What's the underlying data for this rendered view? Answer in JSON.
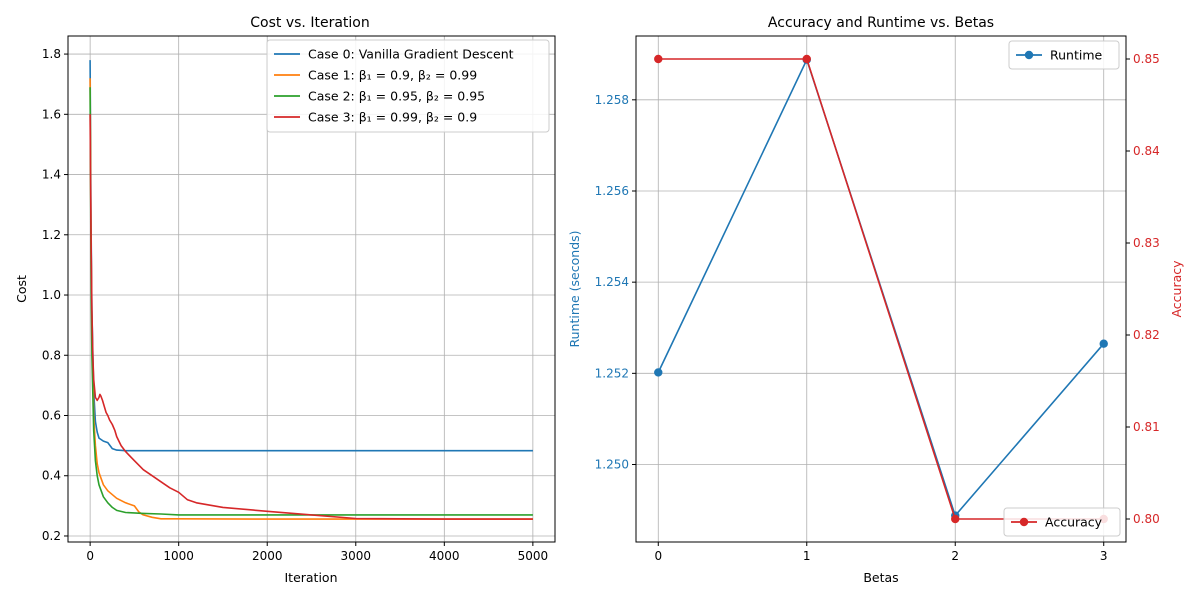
{
  "chart_data": [
    {
      "type": "line",
      "title": "Cost vs. Iteration",
      "xlabel": "Iteration",
      "ylabel": "Cost",
      "xlim": [
        -250,
        5250
      ],
      "ylim": [
        0.18,
        1.86
      ],
      "xticks": [
        0,
        1000,
        2000,
        3000,
        4000,
        5000
      ],
      "yticks": [
        0.2,
        0.4,
        0.6,
        0.8,
        1.0,
        1.2,
        1.4,
        1.6,
        1.8
      ],
      "grid": true,
      "legend": "top-right",
      "series": [
        {
          "name": "Case 0: Vanilla Gradient Descent",
          "color": "#1f77b4",
          "x": [
            0,
            10,
            20,
            40,
            60,
            80,
            100,
            150,
            200,
            250,
            300,
            400,
            600,
            1000,
            2000,
            3000,
            4000,
            5000
          ],
          "y": [
            1.78,
            1.25,
            0.95,
            0.68,
            0.58,
            0.545,
            0.525,
            0.515,
            0.51,
            0.49,
            0.485,
            0.483,
            0.483,
            0.483,
            0.483,
            0.483,
            0.483,
            0.483
          ]
        },
        {
          "name": "Case 1: β₁ = 0.9, β₂ = 0.99",
          "color": "#ff7f0e",
          "x": [
            0,
            10,
            20,
            40,
            60,
            80,
            100,
            150,
            200,
            300,
            400,
            500,
            550,
            600,
            700,
            800,
            1000,
            2000,
            3000,
            4000,
            5000
          ],
          "y": [
            1.72,
            1.2,
            0.9,
            0.6,
            0.5,
            0.44,
            0.41,
            0.37,
            0.35,
            0.325,
            0.31,
            0.3,
            0.28,
            0.27,
            0.262,
            0.257,
            0.257,
            0.256,
            0.256,
            0.256,
            0.256
          ]
        },
        {
          "name": "Case 2: β₁ = 0.95, β₂ = 0.95",
          "color": "#2ca02c",
          "x": [
            0,
            10,
            20,
            40,
            60,
            80,
            100,
            150,
            200,
            250,
            300,
            400,
            600,
            800,
            1000,
            2000,
            3000,
            4000,
            5000
          ],
          "y": [
            1.69,
            1.1,
            0.8,
            0.55,
            0.45,
            0.4,
            0.37,
            0.33,
            0.31,
            0.295,
            0.285,
            0.278,
            0.275,
            0.273,
            0.27,
            0.27,
            0.27,
            0.27,
            0.27
          ]
        },
        {
          "name": "Case 3: β₁ = 0.99, β₂ = 0.9",
          "color": "#d62728",
          "x": [
            0,
            10,
            20,
            30,
            40,
            60,
            80,
            100,
            110,
            120,
            140,
            160,
            180,
            200,
            220,
            250,
            280,
            300,
            350,
            400,
            500,
            600,
            700,
            800,
            900,
            1000,
            1100,
            1200,
            1500,
            2000,
            2500,
            3000,
            4000,
            5000
          ],
          "y": [
            1.6,
            1.2,
            0.95,
            0.8,
            0.72,
            0.66,
            0.65,
            0.66,
            0.67,
            0.665,
            0.65,
            0.63,
            0.61,
            0.6,
            0.585,
            0.57,
            0.55,
            0.53,
            0.5,
            0.48,
            0.45,
            0.42,
            0.4,
            0.38,
            0.36,
            0.345,
            0.32,
            0.31,
            0.295,
            0.282,
            0.27,
            0.258,
            0.256,
            0.256
          ]
        }
      ]
    },
    {
      "type": "line",
      "title": "Accuracy and Runtime vs. Betas",
      "xlabel": "Betas",
      "ylabel": "Runtime (seconds)",
      "ylabel_right": "Accuracy",
      "xlim": [
        -0.15,
        3.15
      ],
      "ylim": [
        1.2483,
        1.2594
      ],
      "ylim_right": [
        0.7975,
        0.8525
      ],
      "xticks": [
        0,
        1,
        2,
        3
      ],
      "yticks": [
        1.25,
        1.252,
        1.254,
        1.256,
        1.258
      ],
      "yticks_right": [
        0.8,
        0.81,
        0.82,
        0.83,
        0.84,
        0.85
      ],
      "grid": true,
      "legend_runtime": "top-right",
      "legend_accuracy": "bottom-right",
      "runtime_color": "#1f77b4",
      "accuracy_color": "#d62728",
      "series": [
        {
          "name": "Runtime",
          "axis": "left",
          "color": "#1f77b4",
          "x": [
            0,
            1,
            2,
            3
          ],
          "values": [
            1.25202,
            1.25888,
            1.24888,
            1.25265
          ]
        },
        {
          "name": "Accuracy",
          "axis": "right",
          "color": "#d62728",
          "x": [
            0,
            1,
            2,
            3
          ],
          "values": [
            0.85,
            0.85,
            0.8,
            0.8
          ]
        }
      ]
    }
  ]
}
